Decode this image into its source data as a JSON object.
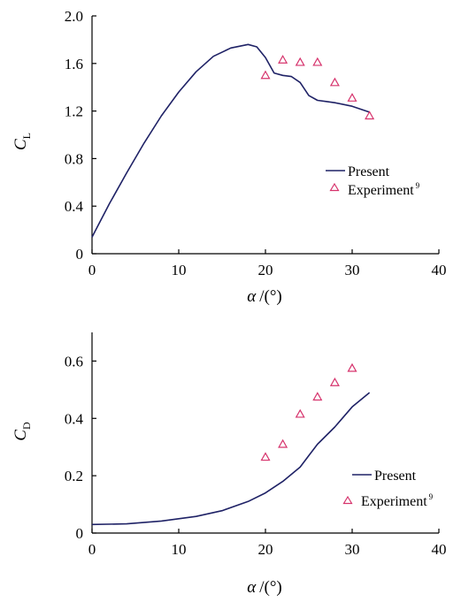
{
  "chart_data": [
    {
      "type": "line",
      "ylabel": "C",
      "ylabel_sub": "L",
      "xlabel_symbol": "α",
      "xlabel_unit": "/(°)",
      "xlim": [
        0,
        40
      ],
      "ylim": [
        0,
        2.0
      ],
      "x_ticks": [
        0,
        10,
        20,
        30,
        40
      ],
      "y_ticks": [
        0,
        0.4,
        0.8,
        1.2,
        1.6,
        2.0
      ],
      "x_tick_labels": [
        "0",
        "10",
        "20",
        "30",
        "40"
      ],
      "y_tick_labels": [
        "0",
        "0.4",
        "0.8",
        "1.2",
        "1.6",
        "2.0"
      ],
      "grid": false,
      "legend_position": "right",
      "series": [
        {
          "name": "Present",
          "style": "line",
          "color": "#1f2266",
          "x": [
            0,
            2,
            4,
            6,
            8,
            10,
            12,
            14,
            16,
            18,
            19,
            20,
            21,
            22,
            23,
            24,
            25,
            26,
            27,
            28,
            30,
            32
          ],
          "y": [
            0.14,
            0.42,
            0.68,
            0.93,
            1.16,
            1.36,
            1.53,
            1.66,
            1.73,
            1.76,
            1.74,
            1.65,
            1.52,
            1.5,
            1.49,
            1.44,
            1.33,
            1.29,
            1.28,
            1.27,
            1.24,
            1.19
          ]
        },
        {
          "name": "Experiment",
          "name_sup": "9",
          "style": "marker",
          "marker": "triangle",
          "color": "#d6336c",
          "x": [
            20,
            22,
            24,
            26,
            28,
            30,
            32
          ],
          "y": [
            1.5,
            1.63,
            1.61,
            1.61,
            1.44,
            1.31,
            1.16
          ]
        }
      ]
    },
    {
      "type": "line",
      "ylabel": "C",
      "ylabel_sub": "D",
      "xlabel_symbol": "α",
      "xlabel_unit": "/(°)",
      "xlim": [
        0,
        40
      ],
      "ylim": [
        0,
        0.7
      ],
      "x_ticks": [
        0,
        10,
        20,
        30,
        40
      ],
      "y_ticks": [
        0,
        0.2,
        0.4,
        0.6
      ],
      "x_tick_labels": [
        "0",
        "10",
        "20",
        "30",
        "40"
      ],
      "y_tick_labels": [
        "0",
        "0.2",
        "0.4",
        "0.6"
      ],
      "grid": false,
      "legend_position": "bottom-right",
      "series": [
        {
          "name": "Present",
          "style": "line",
          "color": "#1f2266",
          "x": [
            0,
            4,
            8,
            12,
            15,
            18,
            20,
            22,
            24,
            25,
            26,
            28,
            30,
            32
          ],
          "y": [
            0.03,
            0.032,
            0.042,
            0.058,
            0.078,
            0.11,
            0.14,
            0.18,
            0.23,
            0.27,
            0.31,
            0.37,
            0.44,
            0.49
          ]
        },
        {
          "name": "Experiment",
          "name_sup": "9",
          "style": "marker",
          "marker": "triangle",
          "color": "#d6336c",
          "x": [
            20,
            22,
            24,
            26,
            28,
            30
          ],
          "y": [
            0.265,
            0.31,
            0.415,
            0.475,
            0.525,
            0.575
          ]
        }
      ]
    }
  ]
}
